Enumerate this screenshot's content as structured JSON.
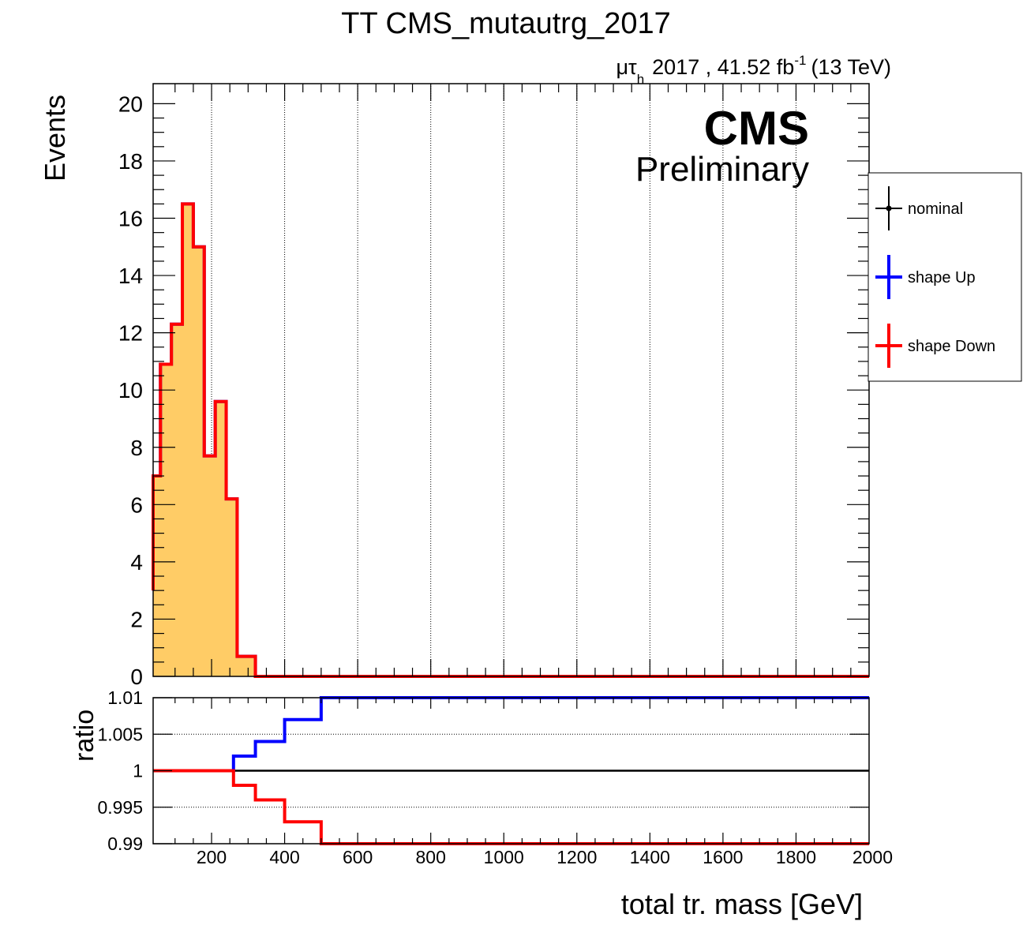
{
  "title": "TT CMS_mutautrg_2017",
  "lumi": {
    "channel_mu": "μτ",
    "channel_sub": "h",
    "text": "2017 , 41.52 fb",
    "exp": "-1",
    "energy": "(13 TeV)"
  },
  "cms_label": "CMS",
  "cms_sublabel": "Preliminary",
  "colors": {
    "fill": "#ffcc66",
    "nominal": "#000000",
    "up": "#0000ff",
    "down": "#ff0000"
  },
  "chart_data": [
    {
      "type": "histogram",
      "panel": "main",
      "ylabel": "Events",
      "xlim": [
        40,
        2000
      ],
      "ylim": [
        0,
        20.7
      ],
      "y_ticks": [
        "0",
        "2",
        "4",
        "6",
        "8",
        "10",
        "12",
        "14",
        "16",
        "18",
        "20"
      ],
      "grid_x": true,
      "legend_position": "right-outside",
      "legend": [
        {
          "key": "nominal",
          "label": "nominal"
        },
        {
          "key": "up",
          "label": "shape Up"
        },
        {
          "key": "down",
          "label": "shape Down"
        }
      ],
      "bin_edges": [
        40,
        60,
        90,
        120,
        150,
        180,
        210,
        240,
        270,
        320,
        400,
        2000
      ],
      "series": [
        {
          "name": "nominal",
          "values": [
            7.0,
            10.9,
            12.3,
            16.5,
            15.0,
            7.7,
            9.6,
            6.2,
            0.7,
            0.0,
            0.0
          ]
        },
        {
          "name": "shape Up",
          "values": [
            7.0,
            10.9,
            12.3,
            16.5,
            15.0,
            7.7,
            9.6,
            6.2,
            0.7,
            0.0,
            0.0
          ]
        },
        {
          "name": "shape Down",
          "values": [
            7.0,
            10.9,
            12.3,
            16.5,
            15.0,
            7.7,
            9.6,
            6.2,
            0.7,
            0.0,
            0.0
          ]
        }
      ],
      "first_bin_edge_value": 3.0
    },
    {
      "type": "line",
      "panel": "ratio",
      "ylabel": "ratio",
      "xlabel": "total tr. mass [GeV]",
      "xlim": [
        40,
        2000
      ],
      "ylim": [
        0.99,
        1.01
      ],
      "y_ticks": [
        "0.99",
        "0.995",
        "1",
        "1.005",
        "1.01"
      ],
      "x_ticks": [
        "200",
        "400",
        "600",
        "800",
        "1000",
        "1200",
        "1400",
        "1600",
        "1800",
        "2000"
      ],
      "grid_y": true,
      "step_edges": [
        40,
        260,
        320,
        400,
        500,
        2000
      ],
      "series": [
        {
          "name": "nominal",
          "values": [
            1.0,
            1.0,
            1.0,
            1.0,
            1.0
          ]
        },
        {
          "name": "shape Up",
          "values": [
            1.0,
            1.002,
            1.004,
            1.007,
            1.01
          ]
        },
        {
          "name": "shape Down",
          "values": [
            1.0,
            0.998,
            0.996,
            0.993,
            0.99
          ]
        }
      ]
    }
  ]
}
